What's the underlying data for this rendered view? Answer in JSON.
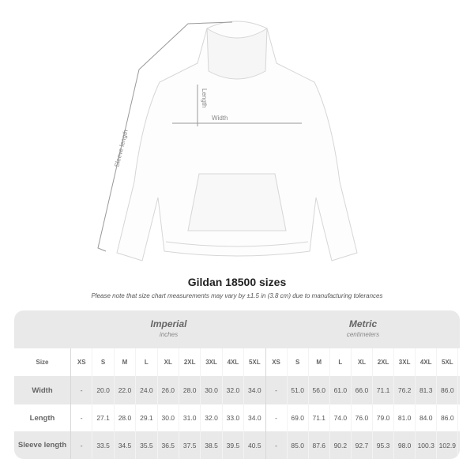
{
  "illustration": {
    "labels": {
      "sleeve": "Sleeve length",
      "length": "Length",
      "width": "Width"
    }
  },
  "title": "Gildan 18500 sizes",
  "subtitle": "Please note that size chart measurements may vary by ±1.5 in (3.8 cm) due to manufacturing tolerances",
  "table": {
    "groups": [
      {
        "name": "Imperial",
        "unit": "inches"
      },
      {
        "name": "Metric",
        "unit": "centimeters"
      }
    ],
    "size_label": "Size",
    "sizes": [
      "XS",
      "S",
      "M",
      "L",
      "XL",
      "2XL",
      "3XL",
      "4XL",
      "5XL"
    ],
    "rows": [
      {
        "label": "Width",
        "imperial": [
          "-",
          "20.0",
          "22.0",
          "24.0",
          "26.0",
          "28.0",
          "30.0",
          "32.0",
          "34.0"
        ],
        "metric": [
          "-",
          "51.0",
          "56.0",
          "61.0",
          "66.0",
          "71.1",
          "76.2",
          "81.3",
          "86.0"
        ]
      },
      {
        "label": "Length",
        "imperial": [
          "-",
          "27.1",
          "28.0",
          "29.1",
          "30.0",
          "31.0",
          "32.0",
          "33.0",
          "34.0"
        ],
        "metric": [
          "-",
          "69.0",
          "71.1",
          "74.0",
          "76.0",
          "79.0",
          "81.0",
          "84.0",
          "86.0"
        ]
      },
      {
        "label": "Sleeve length",
        "imperial": [
          "-",
          "33.5",
          "34.5",
          "35.5",
          "36.5",
          "37.5",
          "38.5",
          "39.5",
          "40.5"
        ],
        "metric": [
          "-",
          "85.0",
          "87.6",
          "90.2",
          "92.7",
          "95.3",
          "98.0",
          "100.3",
          "102.9"
        ]
      }
    ]
  },
  "colors": {
    "band": "#e9e9e9",
    "measure_line": "#999999"
  }
}
